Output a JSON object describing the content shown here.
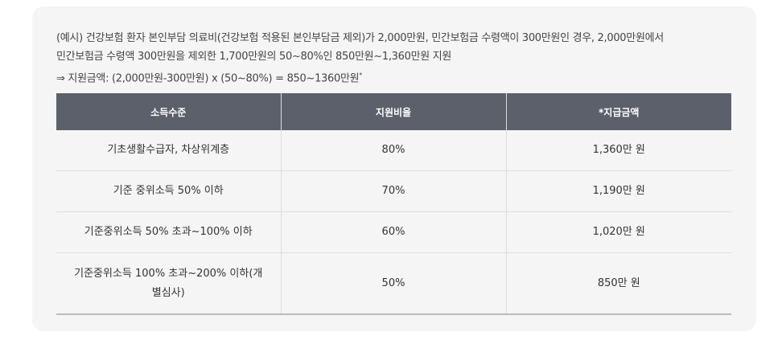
{
  "note": {
    "lines": [
      "(예시) 건강보험 환자 본인부담 의료비(건강보험 적용된 본인부담금 제외)가 2,000만원, 민간보험금 수령액이 300만원인 경우, 2,000만원에서",
      "민간보험금 수령액 300만원을 제외한 1,700만원의 50~80%인 850만원~1,360만원 지원",
      "⇒ 지원금액: (2,000만원-300만원) x (50~80%) = 850~1360만원"
    ],
    "superscript": "*"
  },
  "table": {
    "header": [
      "소득수준",
      "지원비율",
      "*지급금액"
    ],
    "rows": [
      [
        "기초생활수급자, 차상위계층",
        "80%",
        "1,360만 원"
      ],
      [
        "기준 중위소득 50% 이하",
        "70%",
        "1,190만 원"
      ],
      [
        "기준중위소득 50% 초과~100% 이하",
        "60%",
        "1,020만 원"
      ],
      [
        "기준중위소득 100% 초과~200% 이하(개별심사)",
        "50%",
        "850만 원"
      ]
    ]
  }
}
